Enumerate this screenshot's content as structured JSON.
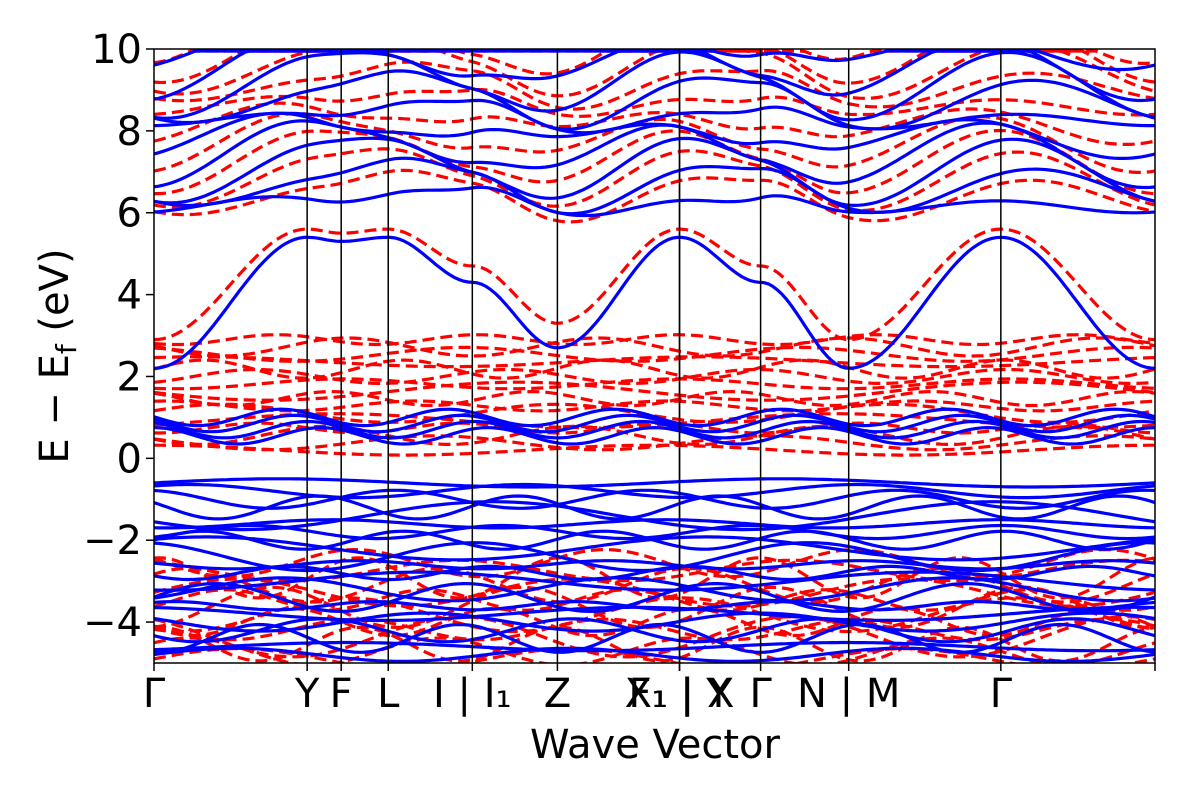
{
  "chart_data": {
    "type": "line",
    "title": "",
    "xlabel": "Wave Vector",
    "ylabel": "E − E",
    "ylabel_subscript": "f",
    "ylabel_unit": " (eV)",
    "ylim": [
      -5,
      10
    ],
    "yticks": [
      -4,
      -2,
      0,
      2,
      4,
      6,
      8,
      10
    ],
    "ytick_labels": [
      "−4",
      "−2",
      "0",
      "2",
      "4",
      "6",
      "8",
      "10"
    ],
    "xlim": [
      0,
      1
    ],
    "grid": false,
    "legend": "none",
    "high_symmetry_points": [
      {
        "x": 0.0,
        "label": "Γ"
      },
      {
        "x": 0.153,
        "label": "Y"
      },
      {
        "x": 0.187,
        "label": "F"
      },
      {
        "x": 0.234,
        "label": "L"
      },
      {
        "x": 0.318,
        "label": "I | I₁"
      },
      {
        "x": 0.403,
        "label": "Z"
      },
      {
        "x": 0.525,
        "label": "F₁ | Y"
      },
      {
        "x": 0.525,
        "label": "X₁ | X"
      },
      {
        "x": 0.606,
        "label": "Γ"
      },
      {
        "x": 0.694,
        "label": "N | M"
      },
      {
        "x": 0.846,
        "label": "Γ"
      },
      {
        "x": 1.0,
        "label": ""
      }
    ],
    "series": [
      {
        "style": "solid",
        "color": "#0000ff",
        "description": "spin channel A (blue, solid)"
      },
      {
        "style": "dashed",
        "color": "#ff0000",
        "description": "spin channel B (red, dashed)"
      }
    ],
    "band_samples": {
      "blue_conduction_lowest": {
        "x": [
          0,
          0.153,
          0.187,
          0.234,
          0.318,
          0.403,
          0.525,
          0.606,
          0.694,
          0.846,
          1.0
        ],
        "y": [
          2.2,
          5.4,
          5.3,
          5.4,
          4.3,
          2.7,
          5.4,
          4.3,
          2.2,
          5.4,
          2.2
        ]
      },
      "red_conduction_lowest": {
        "x": [
          0,
          0.153,
          0.187,
          0.234,
          0.318,
          0.403,
          0.525,
          0.606,
          0.694,
          0.846,
          1.0
        ],
        "y": [
          2.9,
          5.6,
          5.5,
          5.6,
          4.7,
          3.3,
          5.6,
          4.7,
          2.9,
          5.6,
          2.9
        ]
      }
    }
  }
}
